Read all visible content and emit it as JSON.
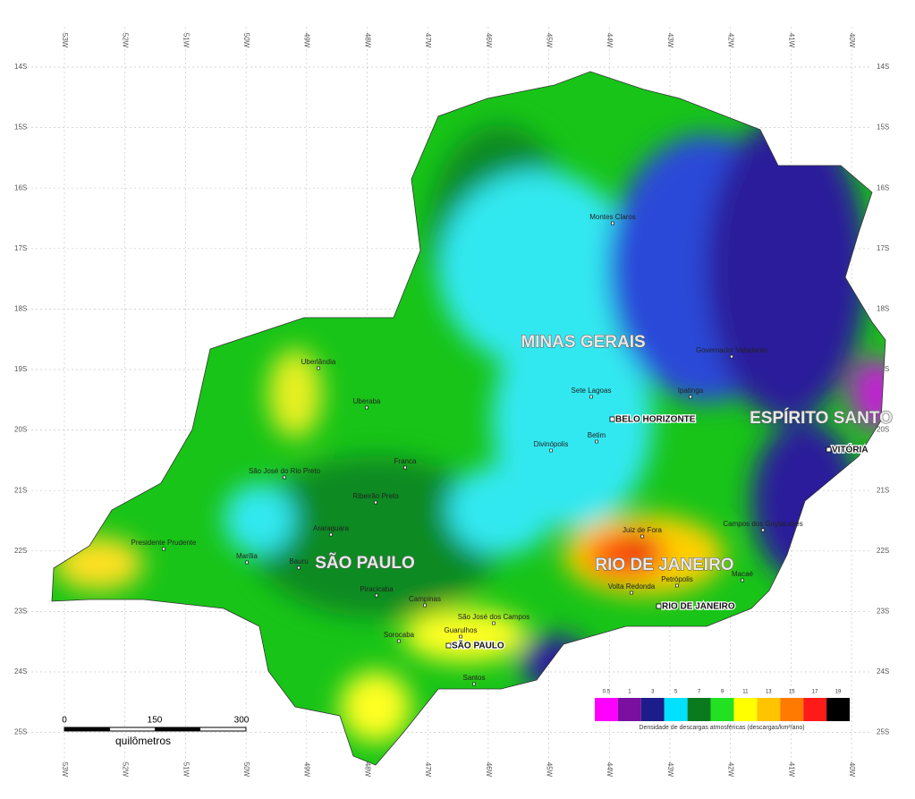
{
  "longitude_labels": [
    "53W",
    "52W",
    "51W",
    "50W",
    "49W",
    "48W",
    "47W",
    "46W",
    "45W",
    "44W",
    "43W",
    "42W",
    "41W",
    "40W"
  ],
  "latitude_labels": [
    "14S",
    "15S",
    "16S",
    "17S",
    "18S",
    "19S",
    "20S",
    "21S",
    "22S",
    "23S",
    "24S",
    "25S"
  ],
  "states": [
    "MINAS GERAIS",
    "ESPÍRITO SANTO",
    "RIO DE JANEIRO",
    "SÃO PAULO"
  ],
  "cities": [
    "Montes Claros",
    "Uberlândia",
    "Governador Valadares",
    "Sete Lagoas",
    "Ipatinga",
    "Uberaba",
    "Betim",
    "Divinópolis",
    "Franca",
    "São José do Rio Preto",
    "Ribeirão Preto",
    "Campos dos Goytacazes",
    "Araraquara",
    "Juiz de Fora",
    "Presidente Prudente",
    "Marília",
    "Bauru",
    "Macaé",
    "Petrópolis",
    "Volta Redonda",
    "Piracicaba",
    "Campinas",
    "São José dos Campos",
    "Guarulhos",
    "Sorocaba",
    "Santos"
  ],
  "capitals": [
    "BELO HORIZONTE",
    "VITÓRIA",
    "RIO DE JANEIRO",
    "SÃO PAULO"
  ],
  "legend": {
    "caption": "Densidade de descargas atmosféricas (descargas/km²/ano)",
    "classes": [
      {
        "label": "0.5",
        "color": "#ff00ff"
      },
      {
        "label": "1",
        "color": "#7a0fa0"
      },
      {
        "label": "3",
        "color": "#1c1c8a"
      },
      {
        "label": "5",
        "color": "#00e0ff"
      },
      {
        "label": "7",
        "color": "#0a7a1e"
      },
      {
        "label": "9",
        "color": "#22e022"
      },
      {
        "label": "11",
        "color": "#ffff00"
      },
      {
        "label": "13",
        "color": "#ffc400"
      },
      {
        "label": "15",
        "color": "#ff7a00"
      },
      {
        "label": "17",
        "color": "#ff1a1a"
      },
      {
        "label": "19",
        "color": "#000000"
      }
    ]
  },
  "scale_bar": {
    "ticks": [
      "0",
      "150",
      "300"
    ],
    "unit": "quilômetros"
  }
}
